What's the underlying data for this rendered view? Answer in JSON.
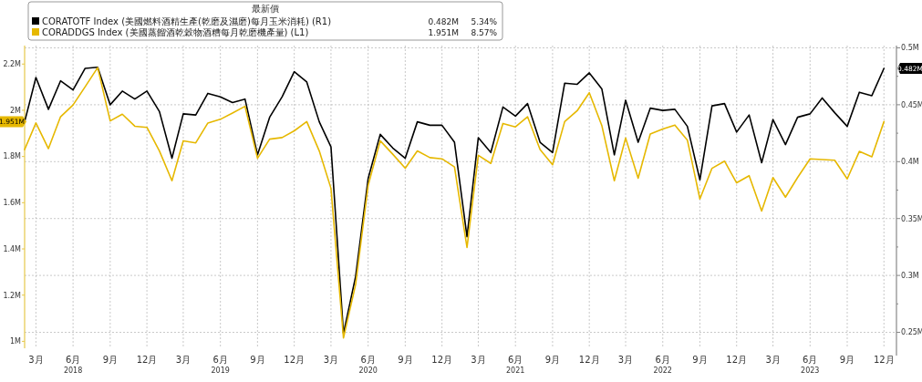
{
  "chart_data": {
    "type": "line",
    "legend_title": "最新價",
    "legend": "top left",
    "grid": true,
    "x": [
      "2018-02",
      "2018-03",
      "2018-04",
      "2018-05",
      "2018-06",
      "2018-07",
      "2018-08",
      "2018-09",
      "2018-10",
      "2018-11",
      "2018-12",
      "2019-01",
      "2019-02",
      "2019-03",
      "2019-04",
      "2019-05",
      "2019-06",
      "2019-07",
      "2019-08",
      "2019-09",
      "2019-10",
      "2019-11",
      "2019-12",
      "2020-01",
      "2020-02",
      "2020-03",
      "2020-04",
      "2020-05",
      "2020-06",
      "2020-07",
      "2020-08",
      "2020-09",
      "2020-10",
      "2020-11",
      "2020-12",
      "2021-01",
      "2021-02",
      "2021-03",
      "2021-04",
      "2021-05",
      "2021-06",
      "2021-07",
      "2021-08",
      "2021-09",
      "2021-10",
      "2021-11",
      "2021-12",
      "2022-01",
      "2022-02",
      "2022-03",
      "2022-04",
      "2022-05",
      "2022-06",
      "2022-07",
      "2022-08",
      "2022-09",
      "2022-10",
      "2022-11",
      "2022-12",
      "2023-01",
      "2023-02",
      "2023-03",
      "2023-04",
      "2023-05",
      "2023-06",
      "2023-07",
      "2023-08",
      "2023-09",
      "2023-10",
      "2023-11",
      "2023-12"
    ],
    "series": [
      {
        "name": "CORATOTF Index (美國燃料酒精生產(乾磨及濕磨)每月玉米消耗) (R1)",
        "color": "#000000",
        "axis": "y2",
        "values": [
          0.435,
          0.474,
          0.446,
          0.471,
          0.463,
          0.482,
          0.483,
          0.45,
          0.462,
          0.455,
          0.462,
          0.444,
          0.403,
          0.442,
          0.441,
          0.46,
          0.457,
          0.452,
          0.455,
          0.406,
          0.439,
          0.457,
          0.479,
          0.47,
          0.435,
          0.413,
          0.249,
          0.299,
          0.385,
          0.424,
          0.412,
          0.403,
          0.435,
          0.432,
          0.432,
          0.417,
          0.334,
          0.421,
          0.408,
          0.448,
          0.44,
          0.451,
          0.417,
          0.408,
          0.469,
          0.468,
          0.478,
          0.464,
          0.406,
          0.454,
          0.417,
          0.447,
          0.445,
          0.446,
          0.431,
          0.384,
          0.449,
          0.451,
          0.426,
          0.441,
          0.399,
          0.437,
          0.415,
          0.439,
          0.442,
          0.456,
          0.443,
          0.431,
          0.461,
          0.458,
          0.482
        ]
      },
      {
        "name": "CORADDGS Index (美國蒸餾酒乾穀物酒糟每月乾磨機產量) (L1)",
        "color": "#e6b800",
        "values": [
          1.83,
          1.945,
          1.834,
          1.972,
          2.023,
          2.102,
          2.185,
          1.954,
          1.983,
          1.931,
          1.926,
          1.824,
          1.695,
          1.868,
          1.859,
          1.945,
          1.961,
          1.988,
          2.017,
          1.792,
          1.875,
          1.882,
          1.911,
          1.951,
          1.824,
          1.662,
          1.015,
          1.246,
          1.674,
          1.868,
          1.81,
          1.749,
          1.824,
          1.795,
          1.79,
          1.755,
          1.406,
          1.805,
          1.77,
          1.943,
          1.928,
          1.972,
          1.83,
          1.764,
          1.951,
          1.998,
          2.076,
          1.934,
          1.695,
          1.88,
          1.706,
          1.897,
          1.919,
          1.936,
          1.871,
          1.616,
          1.749,
          1.78,
          1.686,
          1.717,
          1.564,
          1.709,
          1.624,
          1.709,
          1.79,
          1.787,
          1.784,
          1.703,
          1.822,
          1.799,
          1.951
        ]
      }
    ],
    "xlim": [
      "2018-02",
      "2024-01"
    ],
    "xticks": [
      {
        "value": "2018-03",
        "label": "3月"
      },
      {
        "value": "2018-06",
        "label": "6月$_{2018}$"
      },
      {
        "value": "2018-09",
        "label": "9月"
      },
      {
        "value": "2018-12",
        "label": "12月"
      },
      {
        "value": "2019-03",
        "label": "3月"
      },
      {
        "value": "2019-06",
        "label": "6月$_{2019}$"
      },
      {
        "value": "2019-09",
        "label": "9月"
      },
      {
        "value": "2019-12",
        "label": "12月"
      },
      {
        "value": "2020-03",
        "label": "3月"
      },
      {
        "value": "2020-06",
        "label": "6月$_{2020}$"
      },
      {
        "value": "2020-09",
        "label": "9月"
      },
      {
        "value": "2020-12",
        "label": "12月"
      },
      {
        "value": "2021-03",
        "label": "3月"
      },
      {
        "value": "2021-06",
        "label": "6月$_{2021}$"
      },
      {
        "value": "2021-09",
        "label": "9月"
      },
      {
        "value": "2021-12",
        "label": "12月"
      },
      {
        "value": "2022-03",
        "label": "3月"
      },
      {
        "value": "2022-06",
        "label": "6月$_{2022}$"
      },
      {
        "value": "2022-09",
        "label": "9月"
      },
      {
        "value": "2022-12",
        "label": "12月"
      },
      {
        "value": "2023-03",
        "label": "3月"
      },
      {
        "value": "2023-06",
        "label": "6月$_{2023}$"
      },
      {
        "value": "2023-09",
        "label": "9月"
      },
      {
        "value": "2023-12",
        "label": "12月"
      }
    ],
    "ylim": [
      0.97,
      2.28
    ],
    "yticks": [
      {
        "value": 1,
        "label": "1M"
      },
      {
        "value": 1.2,
        "label": "1.2M"
      },
      {
        "value": 1.4,
        "label": "1.4M"
      },
      {
        "value": 1.6,
        "label": "1.6M"
      },
      {
        "value": 1.8,
        "label": "1.8M"
      },
      {
        "value": 2,
        "label": "2M"
      },
      {
        "value": 2.2,
        "label": "2.2M"
      }
    ],
    "y2lim": [
      0.236,
      0.502
    ],
    "y2ticks": [
      {
        "value": 0.25,
        "label": "0.25M"
      },
      {
        "value": 0.275,
        "label": null
      },
      {
        "value": 0.3,
        "label": "0.3M"
      },
      {
        "value": 0.325,
        "label": null
      },
      {
        "value": 0.35,
        "label": "0.35M"
      },
      {
        "value": 0.375,
        "label": null
      },
      {
        "value": 0.4,
        "label": "0.4M"
      },
      {
        "value": 0.425,
        "label": null
      },
      {
        "value": 0.45,
        "label": "0.45M"
      },
      {
        "value": 0.475,
        "label": null
      },
      {
        "value": 0.5,
        "label": "0.5M"
      }
    ],
    "annotations": [
      "0.482M",
      "5.34%",
      "1.951M",
      "8.57%",
      "1.951M",
      "0.482M"
    ]
  }
}
